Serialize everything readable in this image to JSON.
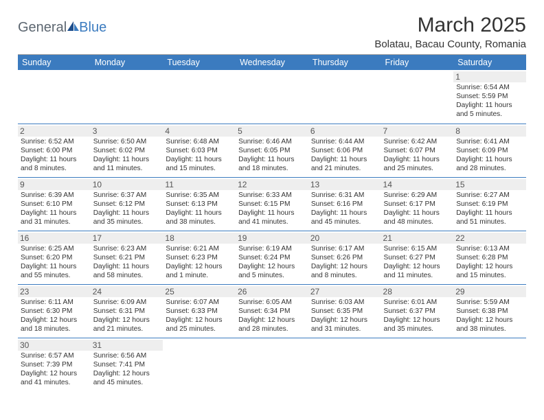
{
  "logo": {
    "part1": "General",
    "part2": "Blue"
  },
  "title": "March 2025",
  "location": "Bolatau, Bacau County, Romania",
  "colors": {
    "header_bg": "#3b7bbf",
    "header_fg": "#ffffff",
    "daynum_bg": "#eeeeee",
    "row_border": "#3b7bbf",
    "body_bg": "#ffffff",
    "text": "#333333",
    "logo_gray": "#5c6670",
    "logo_blue": "#3b7bbf"
  },
  "day_headers": [
    "Sunday",
    "Monday",
    "Tuesday",
    "Wednesday",
    "Thursday",
    "Friday",
    "Saturday"
  ],
  "weeks": [
    [
      null,
      null,
      null,
      null,
      null,
      null,
      {
        "n": "1",
        "sr": "Sunrise: 6:54 AM",
        "ss": "Sunset: 5:59 PM",
        "dl": "Daylight: 11 hours and 5 minutes."
      }
    ],
    [
      {
        "n": "2",
        "sr": "Sunrise: 6:52 AM",
        "ss": "Sunset: 6:00 PM",
        "dl": "Daylight: 11 hours and 8 minutes."
      },
      {
        "n": "3",
        "sr": "Sunrise: 6:50 AM",
        "ss": "Sunset: 6:02 PM",
        "dl": "Daylight: 11 hours and 11 minutes."
      },
      {
        "n": "4",
        "sr": "Sunrise: 6:48 AM",
        "ss": "Sunset: 6:03 PM",
        "dl": "Daylight: 11 hours and 15 minutes."
      },
      {
        "n": "5",
        "sr": "Sunrise: 6:46 AM",
        "ss": "Sunset: 6:05 PM",
        "dl": "Daylight: 11 hours and 18 minutes."
      },
      {
        "n": "6",
        "sr": "Sunrise: 6:44 AM",
        "ss": "Sunset: 6:06 PM",
        "dl": "Daylight: 11 hours and 21 minutes."
      },
      {
        "n": "7",
        "sr": "Sunrise: 6:42 AM",
        "ss": "Sunset: 6:07 PM",
        "dl": "Daylight: 11 hours and 25 minutes."
      },
      {
        "n": "8",
        "sr": "Sunrise: 6:41 AM",
        "ss": "Sunset: 6:09 PM",
        "dl": "Daylight: 11 hours and 28 minutes."
      }
    ],
    [
      {
        "n": "9",
        "sr": "Sunrise: 6:39 AM",
        "ss": "Sunset: 6:10 PM",
        "dl": "Daylight: 11 hours and 31 minutes."
      },
      {
        "n": "10",
        "sr": "Sunrise: 6:37 AM",
        "ss": "Sunset: 6:12 PM",
        "dl": "Daylight: 11 hours and 35 minutes."
      },
      {
        "n": "11",
        "sr": "Sunrise: 6:35 AM",
        "ss": "Sunset: 6:13 PM",
        "dl": "Daylight: 11 hours and 38 minutes."
      },
      {
        "n": "12",
        "sr": "Sunrise: 6:33 AM",
        "ss": "Sunset: 6:15 PM",
        "dl": "Daylight: 11 hours and 41 minutes."
      },
      {
        "n": "13",
        "sr": "Sunrise: 6:31 AM",
        "ss": "Sunset: 6:16 PM",
        "dl": "Daylight: 11 hours and 45 minutes."
      },
      {
        "n": "14",
        "sr": "Sunrise: 6:29 AM",
        "ss": "Sunset: 6:17 PM",
        "dl": "Daylight: 11 hours and 48 minutes."
      },
      {
        "n": "15",
        "sr": "Sunrise: 6:27 AM",
        "ss": "Sunset: 6:19 PM",
        "dl": "Daylight: 11 hours and 51 minutes."
      }
    ],
    [
      {
        "n": "16",
        "sr": "Sunrise: 6:25 AM",
        "ss": "Sunset: 6:20 PM",
        "dl": "Daylight: 11 hours and 55 minutes."
      },
      {
        "n": "17",
        "sr": "Sunrise: 6:23 AM",
        "ss": "Sunset: 6:21 PM",
        "dl": "Daylight: 11 hours and 58 minutes."
      },
      {
        "n": "18",
        "sr": "Sunrise: 6:21 AM",
        "ss": "Sunset: 6:23 PM",
        "dl": "Daylight: 12 hours and 1 minute."
      },
      {
        "n": "19",
        "sr": "Sunrise: 6:19 AM",
        "ss": "Sunset: 6:24 PM",
        "dl": "Daylight: 12 hours and 5 minutes."
      },
      {
        "n": "20",
        "sr": "Sunrise: 6:17 AM",
        "ss": "Sunset: 6:26 PM",
        "dl": "Daylight: 12 hours and 8 minutes."
      },
      {
        "n": "21",
        "sr": "Sunrise: 6:15 AM",
        "ss": "Sunset: 6:27 PM",
        "dl": "Daylight: 12 hours and 11 minutes."
      },
      {
        "n": "22",
        "sr": "Sunrise: 6:13 AM",
        "ss": "Sunset: 6:28 PM",
        "dl": "Daylight: 12 hours and 15 minutes."
      }
    ],
    [
      {
        "n": "23",
        "sr": "Sunrise: 6:11 AM",
        "ss": "Sunset: 6:30 PM",
        "dl": "Daylight: 12 hours and 18 minutes."
      },
      {
        "n": "24",
        "sr": "Sunrise: 6:09 AM",
        "ss": "Sunset: 6:31 PM",
        "dl": "Daylight: 12 hours and 21 minutes."
      },
      {
        "n": "25",
        "sr": "Sunrise: 6:07 AM",
        "ss": "Sunset: 6:33 PM",
        "dl": "Daylight: 12 hours and 25 minutes."
      },
      {
        "n": "26",
        "sr": "Sunrise: 6:05 AM",
        "ss": "Sunset: 6:34 PM",
        "dl": "Daylight: 12 hours and 28 minutes."
      },
      {
        "n": "27",
        "sr": "Sunrise: 6:03 AM",
        "ss": "Sunset: 6:35 PM",
        "dl": "Daylight: 12 hours and 31 minutes."
      },
      {
        "n": "28",
        "sr": "Sunrise: 6:01 AM",
        "ss": "Sunset: 6:37 PM",
        "dl": "Daylight: 12 hours and 35 minutes."
      },
      {
        "n": "29",
        "sr": "Sunrise: 5:59 AM",
        "ss": "Sunset: 6:38 PM",
        "dl": "Daylight: 12 hours and 38 minutes."
      }
    ],
    [
      {
        "n": "30",
        "sr": "Sunrise: 6:57 AM",
        "ss": "Sunset: 7:39 PM",
        "dl": "Daylight: 12 hours and 41 minutes."
      },
      {
        "n": "31",
        "sr": "Sunrise: 6:56 AM",
        "ss": "Sunset: 7:41 PM",
        "dl": "Daylight: 12 hours and 45 minutes."
      },
      null,
      null,
      null,
      null,
      null
    ]
  ]
}
